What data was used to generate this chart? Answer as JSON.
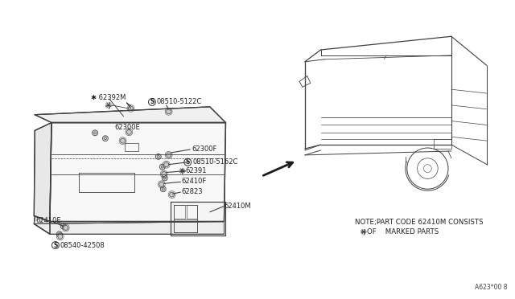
{
  "background_color": "#ffffff",
  "line_color": "#404040",
  "text_color": "#202020",
  "note_line1": "NOTE;PART CODE 62410M CONSISTS",
  "note_line2": "OF ✱ MARKED PARTS",
  "diagram_id": "A623*00 8"
}
